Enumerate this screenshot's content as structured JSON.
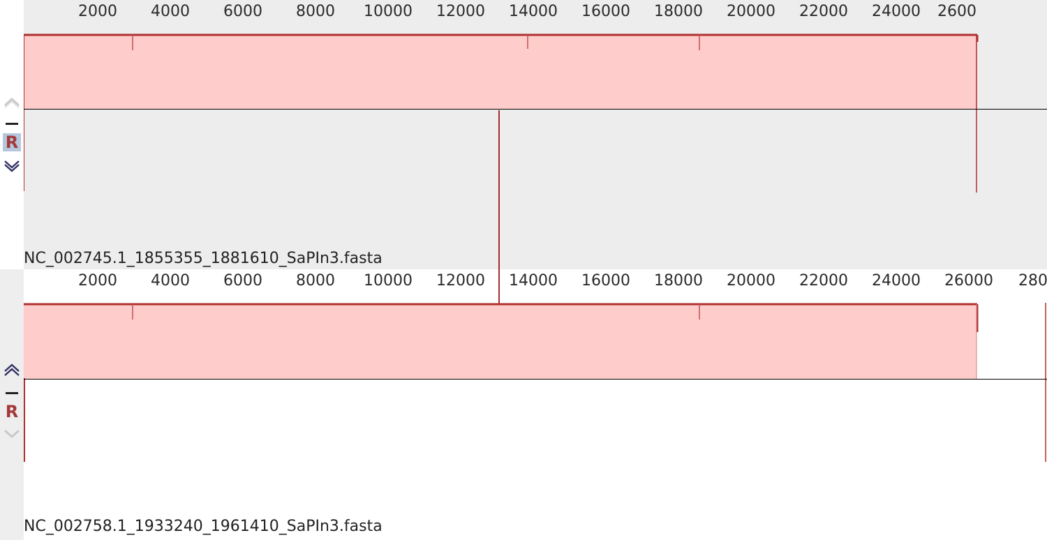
{
  "panels": [
    {
      "label": "NC_002745.1_1855355_1881610_SaPIn3.fasta",
      "ticks": [
        "2000",
        "4000",
        "6000",
        "8000",
        "10000",
        "12000",
        "14000",
        "16000",
        "18000",
        "20000",
        "22000",
        "24000",
        "2600"
      ],
      "controls": {
        "up": "chevron-up",
        "minus": "minus",
        "r": "R",
        "down": "chevron-down"
      }
    },
    {
      "label": "NC_002758.1_1933240_1961410_SaPIn3.fasta",
      "ticks": [
        "2000",
        "4000",
        "6000",
        "8000",
        "10000",
        "12000",
        "14000",
        "16000",
        "18000",
        "20000",
        "22000",
        "24000",
        "26000",
        "280"
      ],
      "controls": {
        "up": "chevron-up",
        "minus": "minus",
        "r": "R",
        "down": "chevron-down"
      }
    }
  ],
  "colors": {
    "coverage_fill": "#ffcccc",
    "coverage_edge": "#b03030",
    "r_button": "#a33a3a",
    "r_button_selected_bg": "#b5c7dd"
  }
}
